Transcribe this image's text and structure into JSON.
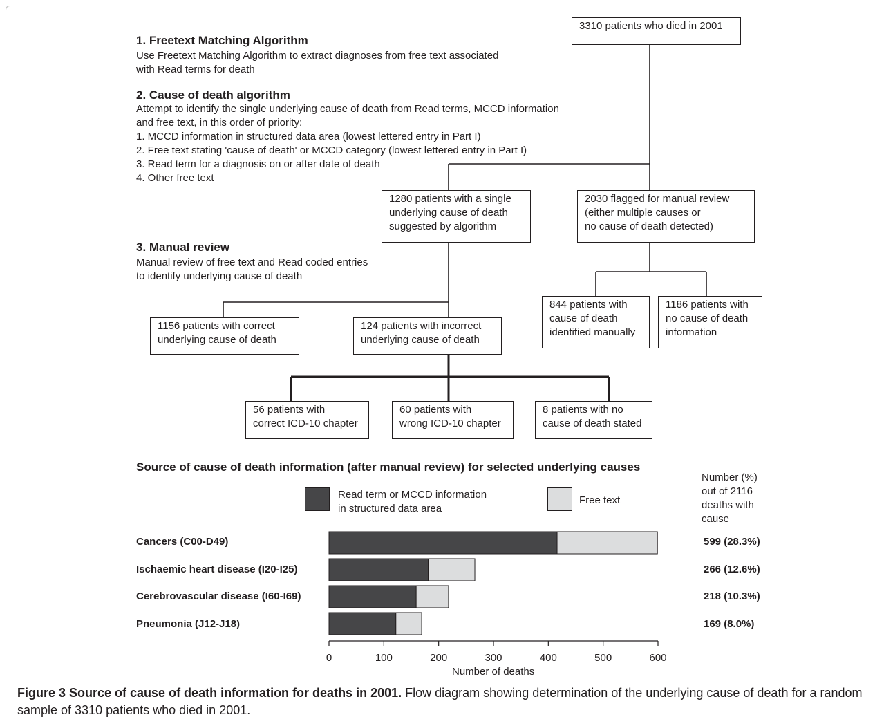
{
  "sections": {
    "s1": {
      "title": "1. Freetext Matching Algorithm",
      "lines": [
        "Use Freetext Matching Algorithm to extract diagnoses from free text associated",
        "with Read terms for death"
      ]
    },
    "s2": {
      "title": "2. Cause of death algorithm",
      "lines": [
        "Attempt to identify the single underlying cause of death from Read terms, MCCD information",
        "and free text, in this order of priority:",
        "1. MCCD information in structured data area (lowest lettered entry in Part I)",
        "2. Free text stating 'cause of death' or MCCD category (lowest lettered entry in Part I)",
        "3. Read term for a diagnosis on or after date of death",
        "4. Other free text"
      ]
    },
    "s3": {
      "title": "3. Manual review",
      "lines": [
        "Manual review of free text and Read coded entries",
        "to identify underlying cause of death"
      ]
    }
  },
  "boxes": {
    "root": [
      "3310 patients who died in 2001"
    ],
    "single": [
      "1280 patients with a single",
      "underlying cause of death",
      "suggested by algorithm"
    ],
    "flagged": [
      "2030 flagged for manual review",
      "(either multiple causes or",
      "no cause of death detected)"
    ],
    "correct": [
      "1156 patients with correct",
      "underlying cause of death"
    ],
    "incorrect": [
      "124 patients with incorrect",
      "underlying cause of death"
    ],
    "manual": [
      "844 patients with",
      "cause of death",
      "identified manually"
    ],
    "nocause": [
      "1186 patients with",
      "no cause of death",
      "information"
    ],
    "chapter_ok": [
      "56 patients with",
      "correct ICD-10 chapter"
    ],
    "chapter_wrong": [
      "60 patients with",
      "wrong ICD-10 chapter"
    ],
    "not_stated": [
      "8 patients with no",
      "cause of death stated"
    ]
  },
  "chart_data": {
    "type": "bar",
    "orientation": "horizontal",
    "stacked": true,
    "title": "Source of cause of death information (after manual review) for selected underlying causes",
    "categories": [
      "Cancers (C00-D49)",
      "Ischaemic heart disease (I20-I25)",
      "Cerebrovascular disease (I60-I69)",
      "Pneumonia (J12-J18)"
    ],
    "series": [
      {
        "name": "Read term or MCCD information in structured data area",
        "color": "#464648",
        "values": [
          416,
          181,
          159,
          122
        ]
      },
      {
        "name": "Free text",
        "color": "#dcddde",
        "values": [
          183,
          85,
          59,
          47
        ]
      }
    ],
    "totals_header": [
      "Number (%)",
      "out of 2116",
      "deaths with",
      "cause"
    ],
    "totals": [
      "599 (28.3%)",
      "266 (12.6%)",
      "218 (10.3%)",
      "169 (8.0%)"
    ],
    "legend_lines": [
      "Read term or MCCD information",
      "in structured data area"
    ],
    "legend_free": "Free text",
    "xlabel": "Number of deaths",
    "xlim": [
      0,
      600
    ],
    "xticks": [
      0,
      100,
      200,
      300,
      400,
      500,
      600
    ],
    "grid": false
  },
  "caption": {
    "bold": "Figure 3 Source of cause of death information for deaths in 2001.",
    "text": " Flow diagram showing determination of the underlying cause of death for a random sample of 3310 patients who died in 2001."
  }
}
